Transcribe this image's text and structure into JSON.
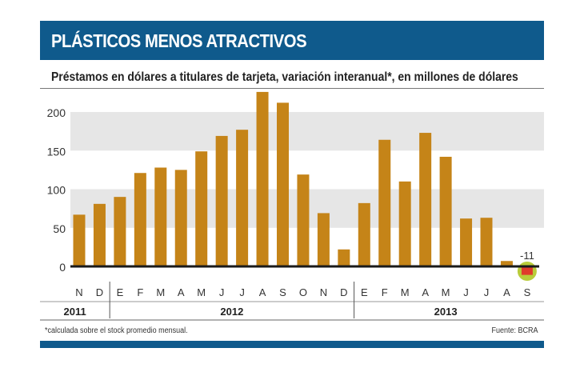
{
  "header": {
    "title": "PLÁSTICOS MENOS ATRACTIVOS"
  },
  "chart_data": {
    "type": "bar",
    "title": "Préstamos en dólares a titulares de tarjeta, variación interanual*, en millones de dólares",
    "categories": [
      "N",
      "D",
      "E",
      "F",
      "M",
      "A",
      "M",
      "J",
      "J",
      "A",
      "S",
      "O",
      "N",
      "D",
      "E",
      "F",
      "M",
      "A",
      "M",
      "J",
      "J",
      "A",
      "S"
    ],
    "years": [
      {
        "label": "2011",
        "count": 2
      },
      {
        "label": "2012",
        "count": 12
      },
      {
        "label": "2013",
        "count": 9
      }
    ],
    "values": [
      67,
      81,
      90,
      121,
      128,
      125,
      149,
      169,
      177,
      226,
      212,
      119,
      69,
      22,
      82,
      164,
      110,
      173,
      142,
      62,
      63,
      7,
      -11
    ],
    "yticks": [
      0,
      50,
      100,
      150,
      200
    ],
    "ylim": [
      -15,
      230
    ],
    "annotation": "-11",
    "grid": "alternating bands",
    "colors": {
      "bar": "#c58418",
      "negative": "#e03a2b",
      "highlight": "#b9cc3a",
      "band": "#e6e6e6"
    }
  },
  "footer": {
    "note": "*calculada sobre el stock promedio mensual.",
    "source": "Fuente: BCRA"
  }
}
